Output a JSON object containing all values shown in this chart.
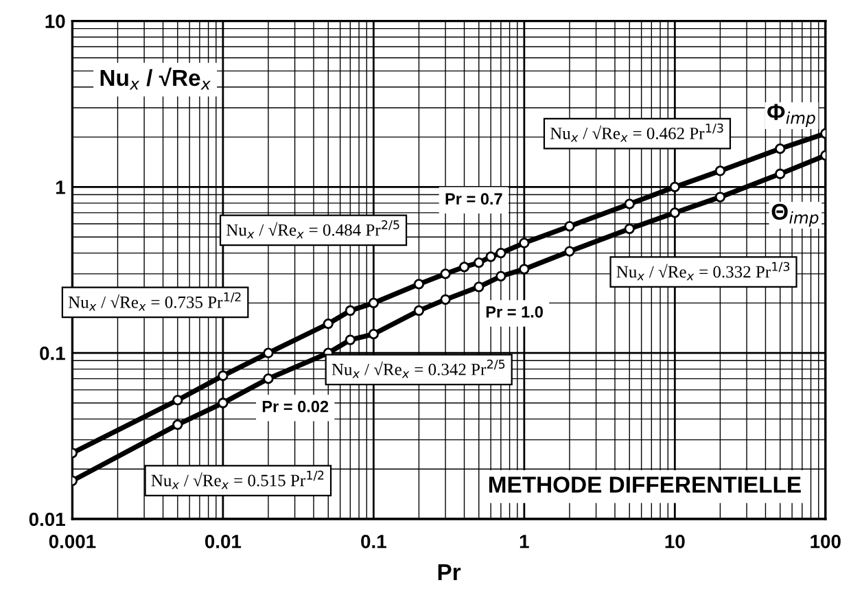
{
  "chart_data": {
    "type": "line",
    "xlabel": "Pr",
    "ylabel": "Nu$_{x}$ / √Re$_{x}$",
    "log": "xy",
    "xlim": [
      0.001,
      100
    ],
    "ylim": [
      0.01,
      10
    ],
    "xticks": [
      0.001,
      0.01,
      0.1,
      1,
      10,
      100
    ],
    "yticks": [
      0.01,
      0.1,
      1,
      10
    ],
    "grid": true,
    "marker": "circle",
    "line_style": "solid",
    "series": [
      {
        "name": "Φ$_{imp}$",
        "color": "#000000",
        "x": [
          0.001,
          0.005,
          0.01,
          0.02,
          0.05,
          0.07,
          0.1,
          0.2,
          0.3,
          0.4,
          0.5,
          0.6,
          0.7,
          1,
          2,
          5,
          10,
          20,
          50,
          100
        ],
        "values": [
          0.025,
          0.052,
          0.073,
          0.1,
          0.15,
          0.18,
          0.2,
          0.26,
          0.3,
          0.33,
          0.35,
          0.38,
          0.4,
          0.46,
          0.58,
          0.79,
          1.0,
          1.25,
          1.7,
          2.1
        ]
      },
      {
        "name": "Θ$_{imp}$",
        "color": "#000000",
        "x": [
          0.001,
          0.005,
          0.01,
          0.02,
          0.05,
          0.07,
          0.1,
          0.2,
          0.3,
          0.5,
          0.7,
          1,
          2,
          5,
          10,
          20,
          50,
          100
        ],
        "values": [
          0.017,
          0.037,
          0.05,
          0.07,
          0.1,
          0.12,
          0.13,
          0.18,
          0.21,
          0.25,
          0.29,
          0.32,
          0.41,
          0.56,
          0.7,
          0.87,
          1.2,
          1.55
        ]
      }
    ],
    "annotations": [
      "Nu$_{x}$ / √Re$_{x}$ = 0.462 Pr$^{1/3}$",
      "Nu$_{x}$ / √Re$_{x}$ = 0.484 Pr$^{2/5}$",
      "Pr = 0.7",
      "Nu$_{x}$ / √Re$_{x}$ = 0.332 Pr$^{1/3}$",
      "Pr = 1.0",
      "Nu$_{x}$ / √Re$_{x}$ = 0.735 Pr$^{1/2}$",
      "Nu$_{x}$ / √Re$_{x}$ = 0.342 Pr$^{2/5}$",
      "Pr = 0.02",
      "Nu$_{x}$ / √Re$_{x}$ = 0.515 Pr$^{1/2}$",
      "METHODE DIFFERENTIELLE"
    ]
  }
}
